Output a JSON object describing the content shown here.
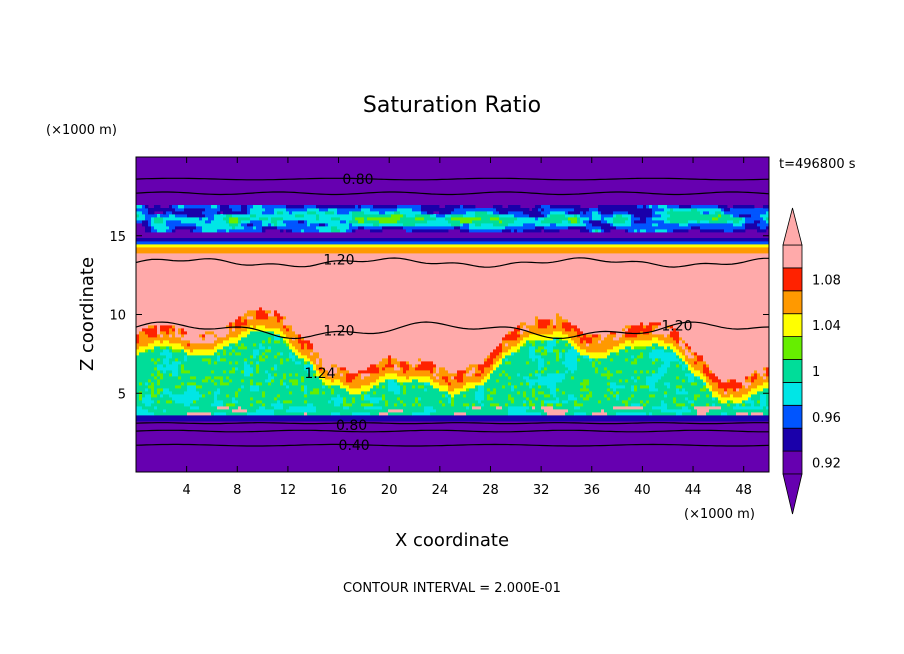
{
  "chart_data": {
    "type": "heatmap",
    "title": "Saturation Ratio",
    "xlabel": "X coordinate",
    "ylabel": "Z coordinate",
    "x_unit": "(×1000 m)",
    "y_unit": "(×1000 m)",
    "xlim": [
      0,
      50
    ],
    "ylim": [
      0,
      20
    ],
    "x_ticks": [
      4,
      8,
      12,
      16,
      20,
      24,
      28,
      32,
      36,
      40,
      44,
      48
    ],
    "y_ticks": [
      5,
      10,
      15
    ],
    "time_label": "t=496800 s",
    "footer": "CONTOUR INTERVAL = 2.000E-01",
    "colorbar": {
      "tick_labels": [
        "1.08",
        "1.04",
        "1",
        "0.96",
        "0.92"
      ],
      "levels": [
        {
          "value": 0.92,
          "color": "#6600b0"
        },
        {
          "value": 0.94,
          "color": "#1a00aa"
        },
        {
          "value": 0.96,
          "color": "#0055ff"
        },
        {
          "value": 0.98,
          "color": "#00e6e6"
        },
        {
          "value": 1.0,
          "color": "#00dd99"
        },
        {
          "value": 1.02,
          "color": "#66ee00"
        },
        {
          "value": 1.04,
          "color": "#ffff00"
        },
        {
          "value": 1.06,
          "color": "#ff9900"
        },
        {
          "value": 1.08,
          "color": "#ff2200"
        },
        {
          "value": 1.1,
          "color": "#ffaaaa"
        }
      ]
    },
    "contour_labels": [
      {
        "text": "0.80",
        "x": 16.3,
        "z": 18.6
      },
      {
        "text": "1.20",
        "x": 14.8,
        "z": 13.5
      },
      {
        "text": "1.20",
        "x": 14.8,
        "z": 9.0
      },
      {
        "text": "1.20",
        "x": 41.5,
        "z": 9.3
      },
      {
        "text": "1.24",
        "x": 13.3,
        "z": 6.3
      },
      {
        "text": "0.80",
        "x": 15.8,
        "z": 3.0
      },
      {
        "text": "0.40",
        "x": 16.0,
        "z": 1.7
      }
    ]
  }
}
